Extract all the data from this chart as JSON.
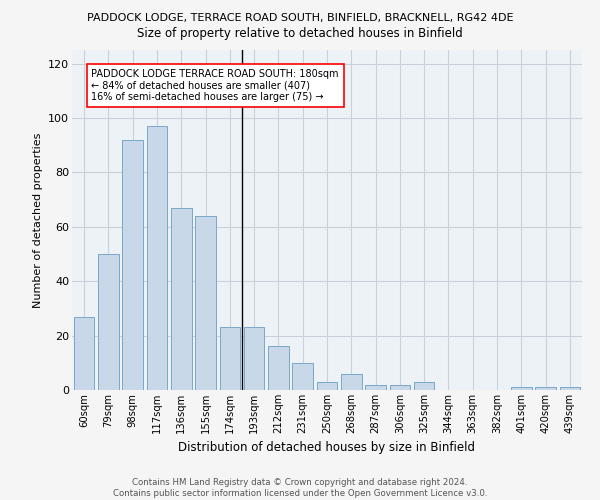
{
  "title": "PADDOCK LODGE, TERRACE ROAD SOUTH, BINFIELD, BRACKNELL, RG42 4DE",
  "subtitle": "Size of property relative to detached houses in Binfield",
  "xlabel": "Distribution of detached houses by size in Binfield",
  "ylabel": "Number of detached properties",
  "categories": [
    "60sqm",
    "79sqm",
    "98sqm",
    "117sqm",
    "136sqm",
    "155sqm",
    "174sqm",
    "193sqm",
    "212sqm",
    "231sqm",
    "250sqm",
    "268sqm",
    "287sqm",
    "306sqm",
    "325sqm",
    "344sqm",
    "363sqm",
    "382sqm",
    "401sqm",
    "420sqm",
    "439sqm"
  ],
  "values": [
    27,
    50,
    92,
    97,
    67,
    64,
    23,
    23,
    16,
    10,
    3,
    6,
    2,
    2,
    3,
    0,
    0,
    0,
    1,
    1,
    1
  ],
  "bar_color": "#c8d8e8",
  "bar_edge_color": "#7aa8c8",
  "grid_color": "#c8d0da",
  "background_color": "#edf2f7",
  "fig_color": "#f5f5f5",
  "marker_label": "PADDOCK LODGE TERRACE ROAD SOUTH: 180sqm",
  "annotation_line1": "← 84% of detached houses are smaller (407)",
  "annotation_line2": "16% of semi-detached houses are larger (75) →",
  "footer1": "Contains HM Land Registry data © Crown copyright and database right 2024.",
  "footer2": "Contains public sector information licensed under the Open Government Licence v3.0.",
  "ylim": [
    0,
    125
  ],
  "yticks": [
    0,
    20,
    40,
    60,
    80,
    100,
    120
  ]
}
